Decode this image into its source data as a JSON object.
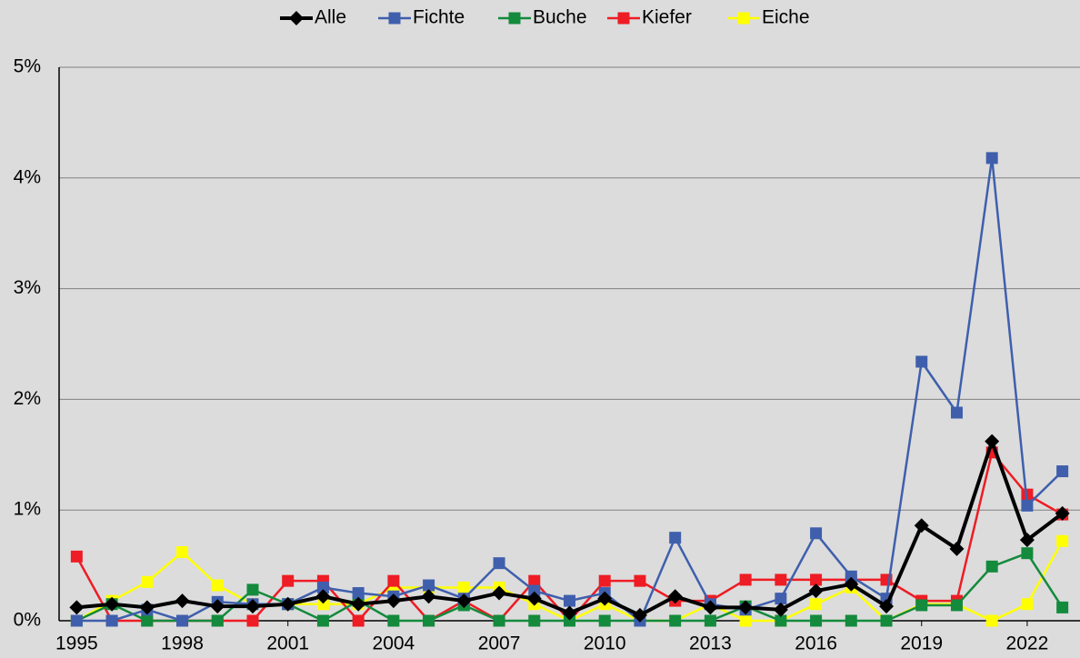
{
  "chart_data": {
    "type": "line",
    "x": [
      1995,
      1996,
      1997,
      1998,
      1999,
      2000,
      2001,
      2002,
      2003,
      2004,
      2005,
      2006,
      2007,
      2008,
      2009,
      2010,
      2011,
      2012,
      2013,
      2014,
      2015,
      2016,
      2017,
      2018,
      2019,
      2020,
      2021,
      2022,
      2023
    ],
    "series": [
      {
        "name": "Alle",
        "color": "#000000",
        "marker": "diamond",
        "values": [
          0.12,
          0.15,
          0.12,
          0.18,
          0.13,
          0.13,
          0.15,
          0.22,
          0.15,
          0.18,
          0.22,
          0.18,
          0.25,
          0.2,
          0.07,
          0.2,
          0.05,
          0.22,
          0.12,
          0.12,
          0.1,
          0.27,
          0.33,
          0.13,
          0.86,
          0.65,
          1.62,
          0.73,
          0.97
        ]
      },
      {
        "name": "Fichte",
        "color": "#3f5fad",
        "marker": "square",
        "values": [
          0,
          0,
          0.1,
          0,
          0.17,
          0.15,
          0.15,
          0.3,
          0.25,
          0.22,
          0.32,
          0.2,
          0.52,
          0.27,
          0.18,
          0.25,
          0,
          0.75,
          0.15,
          0.1,
          0.2,
          0.79,
          0.4,
          0.2,
          2.34,
          1.88,
          4.18,
          1.04,
          1.35
        ]
      },
      {
        "name": "Buche",
        "color": "#138a3c",
        "marker": "square",
        "values": [
          0,
          0.15,
          0,
          0,
          0,
          0.28,
          0.15,
          0,
          0.18,
          0,
          0,
          0.14,
          0,
          0,
          0,
          0,
          0,
          0,
          0,
          0.13,
          0,
          0,
          0,
          0,
          0.14,
          0.14,
          0.49,
          0.61,
          0.12
        ]
      },
      {
        "name": "Kiefer",
        "color": "#ee1c24",
        "marker": "square",
        "values": [
          0.58,
          0,
          0,
          0,
          0,
          0,
          0.36,
          0.36,
          0,
          0.36,
          0,
          0.18,
          0,
          0.36,
          0,
          0.36,
          0.36,
          0.18,
          0.18,
          0.37,
          0.37,
          0.37,
          0.37,
          0.37,
          0.18,
          0.18,
          1.52,
          1.14,
          0.96
        ]
      },
      {
        "name": "Eiche",
        "color": "#ffff00",
        "marker": "square",
        "values": [
          0,
          0.18,
          0.35,
          0.62,
          0.32,
          0.15,
          0.15,
          0.15,
          0.15,
          0.3,
          0.3,
          0.3,
          0.3,
          0.15,
          0,
          0.15,
          0,
          0,
          0.15,
          0,
          0,
          0.15,
          0.3,
          0,
          0.15,
          0.15,
          0,
          0.15,
          0.72
        ]
      }
    ],
    "xlim": [
      1994.5,
      2023.5
    ],
    "xticks": [
      1995,
      1998,
      2001,
      2004,
      2007,
      2010,
      2013,
      2016,
      2019,
      2022
    ],
    "ylim": [
      0,
      5
    ],
    "yticks": [
      {
        "value": 0,
        "label": "0%"
      },
      {
        "value": 1,
        "label": "1%"
      },
      {
        "value": 2,
        "label": "2%"
      },
      {
        "value": 3,
        "label": "3%"
      },
      {
        "value": 4,
        "label": "4%"
      },
      {
        "value": 5,
        "label": "5%"
      }
    ],
    "grid": true,
    "legend": "top"
  }
}
